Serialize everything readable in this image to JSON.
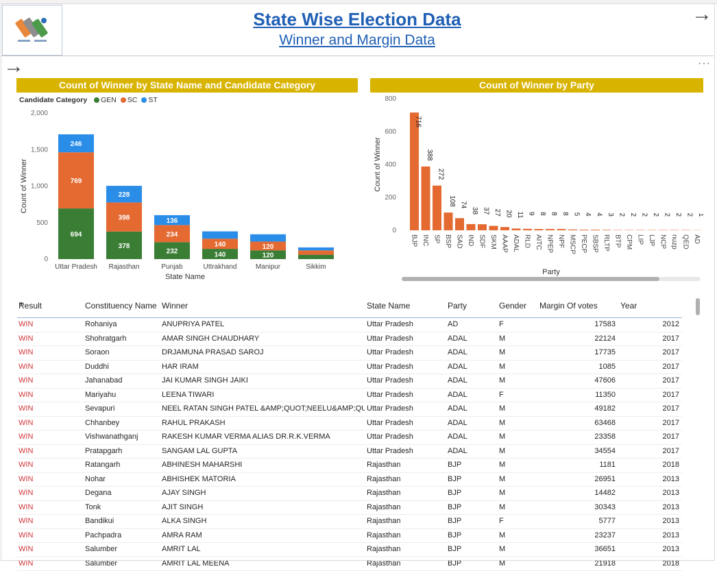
{
  "header": {
    "title": "State Wise Election Data",
    "subtitle": "Winner and Margin Data"
  },
  "colors": {
    "gen": "#3a7d35",
    "sc": "#e46a32",
    "st": "#2a8de8",
    "party_bar": "#e46a32",
    "title_bar": "#d8b300"
  },
  "icons": {
    "logo": "election-commission-logo",
    "next": "arrow-right-icon",
    "back": "arrow-right-icon",
    "more": "more-options-icon"
  },
  "chart1": {
    "title": "Count of Winner by State Name and Candidate Category",
    "legend_title": "Candidate Category",
    "chart_data": {
      "type": "bar",
      "stacked": true,
      "categories": [
        "Uttar Pradesh",
        "Rajasthan",
        "Punjab",
        "Uttrakhand",
        "Manipur",
        "Sikkim"
      ],
      "series": [
        {
          "name": "GEN",
          "values": [
            694,
            378,
            232,
            140,
            120,
            60
          ]
        },
        {
          "name": "SC",
          "values": [
            769,
            398,
            234,
            140,
            120,
            60
          ]
        },
        {
          "name": "ST",
          "values": [
            246,
            228,
            136,
            100,
            100,
            40
          ]
        }
      ],
      "labels_shown": [
        [
          "694",
          "378",
          "232",
          "140",
          "120",
          ""
        ],
        [
          "769",
          "398",
          "234",
          "140",
          "120",
          ""
        ],
        [
          "246",
          "228",
          "136",
          "",
          "",
          ""
        ]
      ],
      "xlabel": "State Name",
      "ylabel": "Count of Winner",
      "ylim": [
        0,
        2000
      ],
      "yticks": [
        "0",
        "500",
        "1,000",
        "1,500",
        "2,000"
      ]
    }
  },
  "chart2": {
    "title": "Count of Winner by Party",
    "chart_data": {
      "type": "bar",
      "categories": [
        "BJP",
        "INC",
        "SP",
        "BSP",
        "SAD",
        "IND",
        "SDF",
        "SKM",
        "AAAP",
        "ADAL",
        "RLD",
        "AITC",
        "NPEP",
        "NPF",
        "MSCP",
        "PECP",
        "SBSP",
        "RLTP",
        "BTP",
        "CPM",
        "LIP",
        "LJP",
        "NCP",
        "nuzp",
        "QED",
        "AD"
      ],
      "values": [
        716,
        388,
        272,
        108,
        74,
        38,
        37,
        27,
        20,
        11,
        9,
        8,
        8,
        8,
        5,
        4,
        4,
        3,
        2,
        2,
        2,
        2,
        2,
        2,
        2,
        1
      ],
      "xlabel": "Party",
      "ylabel": "Count of Winner",
      "ylim": [
        0,
        800
      ],
      "yticks": [
        "0",
        "200",
        "400",
        "600",
        "800"
      ]
    }
  },
  "table": {
    "columns": [
      "Result",
      "Constituency Name",
      "Winner",
      "State Name",
      "Party",
      "Gender",
      "Margin Of votes",
      "Year"
    ],
    "rows": [
      [
        "WIN",
        "Rohaniya",
        "ANUPRIYA PATEL",
        "Uttar Pradesh",
        "AD",
        "F",
        "17583",
        "2012"
      ],
      [
        "WIN",
        "Shohratgarh",
        "AMAR SINGH CHAUDHARY",
        "Uttar Pradesh",
        "ADAL",
        "M",
        "22124",
        "2017"
      ],
      [
        "WIN",
        "Soraon",
        "DRJAMUNA PRASAD SAROJ",
        "Uttar Pradesh",
        "ADAL",
        "M",
        "17735",
        "2017"
      ],
      [
        "WIN",
        "Duddhi",
        "HAR IRAM",
        "Uttar Pradesh",
        "ADAL",
        "M",
        "1085",
        "2017"
      ],
      [
        "WIN",
        "Jahanabad",
        "JAI KUMAR SINGH JAIKI",
        "Uttar Pradesh",
        "ADAL",
        "M",
        "47606",
        "2017"
      ],
      [
        "WIN",
        "Mariyahu",
        "LEENA TIWARI",
        "Uttar Pradesh",
        "ADAL",
        "F",
        "11350",
        "2017"
      ],
      [
        "WIN",
        "Sevapuri",
        "NEEL RATAN SINGH PATEL &AMP;QUOT;NEELU&AMP;QUOT;",
        "Uttar Pradesh",
        "ADAL",
        "M",
        "49182",
        "2017"
      ],
      [
        "WIN",
        "Chhanbey",
        "RAHUL PRAKASH",
        "Uttar Pradesh",
        "ADAL",
        "M",
        "63468",
        "2017"
      ],
      [
        "WIN",
        "Vishwanathganj",
        "RAKESH KUMAR VERMA ALIAS DR.R.K.VERMA",
        "Uttar Pradesh",
        "ADAL",
        "M",
        "23358",
        "2017"
      ],
      [
        "WIN",
        "Pratapgarh",
        "SANGAM LAL GUPTA",
        "Uttar Pradesh",
        "ADAL",
        "M",
        "34554",
        "2017"
      ],
      [
        "WIN",
        "Ratangarh",
        "ABHINESH MAHARSHI",
        "Rajasthan",
        "BJP",
        "M",
        "1181",
        "2018"
      ],
      [
        "WIN",
        "Nohar",
        "ABHISHEK MATORIA",
        "Rajasthan",
        "BJP",
        "M",
        "26951",
        "2013"
      ],
      [
        "WIN",
        "Degana",
        "AJAY SINGH",
        "Rajasthan",
        "BJP",
        "M",
        "14482",
        "2013"
      ],
      [
        "WIN",
        "Tonk",
        "AJIT SINGH",
        "Rajasthan",
        "BJP",
        "M",
        "30343",
        "2013"
      ],
      [
        "WIN",
        "Bandikui",
        "ALKA SINGH",
        "Rajasthan",
        "BJP",
        "F",
        "5777",
        "2013"
      ],
      [
        "WIN",
        "Pachpadra",
        "AMRA RAM",
        "Rajasthan",
        "BJP",
        "M",
        "23237",
        "2013"
      ],
      [
        "WIN",
        "Salumber",
        "AMRIT LAL",
        "Rajasthan",
        "BJP",
        "M",
        "36651",
        "2013"
      ],
      [
        "WIN",
        "Salumber",
        "AMRIT LAL MEENA",
        "Rajasthan",
        "BJP",
        "M",
        "21918",
        "2018"
      ]
    ]
  }
}
